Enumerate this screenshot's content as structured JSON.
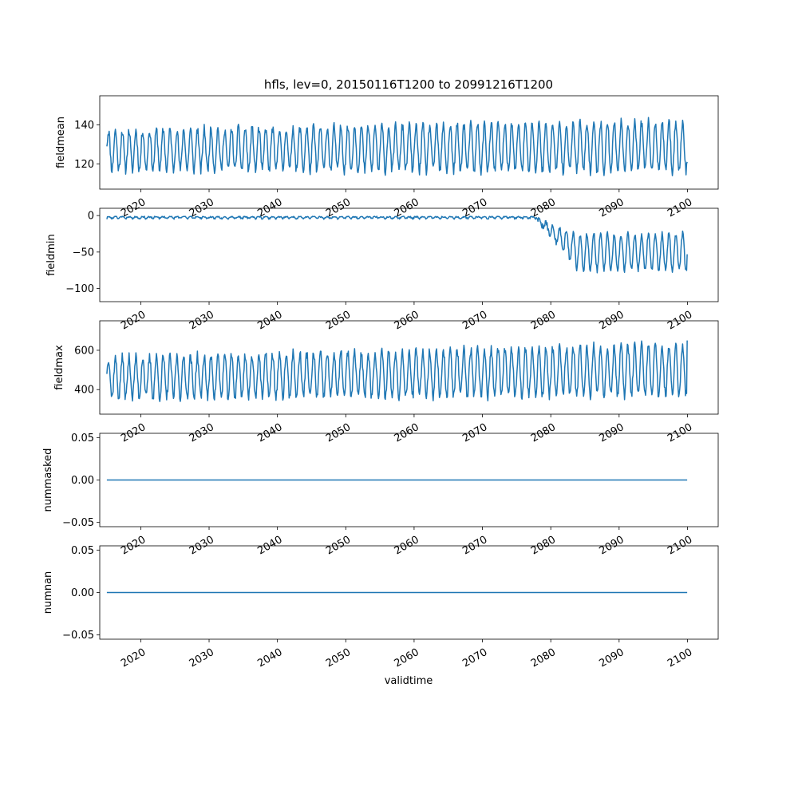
{
  "title": "hfls, lev=0, 20150116T1200 to 20991216T1200",
  "line_color": "#1f77b4",
  "chart_data": [
    {
      "type": "line",
      "ylabel": "fieldmean",
      "xlim": [
        2014.0,
        2104.5
      ],
      "ylim": [
        107,
        155
      ],
      "yticks": [
        120,
        140
      ],
      "ytick_labels": [
        "120",
        "140"
      ],
      "x_start": 2015.04,
      "x_end": 2099.96,
      "generator": {
        "base": [
          127,
          129
        ],
        "amplitude": [
          10,
          13
        ],
        "trend": 0,
        "dip_from": null,
        "dip_depth": 0,
        "noise": 2.5,
        "seed": 11
      },
      "first_value": 129,
      "last_value": 121
    },
    {
      "type": "line",
      "ylabel": "fieldmin",
      "xlim": [
        2014.0,
        2104.5
      ],
      "ylim": [
        -118,
        10
      ],
      "yticks": [
        -100,
        -50,
        0
      ],
      "ytick_labels": [
        "−100",
        "−50",
        "0"
      ],
      "x_start": 2015.04,
      "x_end": 2099.96,
      "generator": {
        "base": [
          -2,
          -2
        ],
        "amplitude": [
          3,
          3
        ],
        "trend": 0,
        "dip_from": 2078,
        "dip_depth": 55,
        "noise": 2.0,
        "seed": 23
      },
      "first_value": -5,
      "last_value": -53
    },
    {
      "type": "line",
      "ylabel": "fieldmax",
      "xlim": [
        2014.0,
        2104.5
      ],
      "ylim": [
        275,
        750
      ],
      "yticks": [
        400,
        600
      ],
      "ytick_labels": [
        "400",
        "600"
      ],
      "x_start": 2015.04,
      "x_end": 2099.96,
      "generator": {
        "base": [
          460,
          500
        ],
        "amplitude": [
          100,
          130
        ],
        "trend": 0,
        "dip_from": null,
        "dip_depth": 0,
        "noise": 25,
        "seed": 37
      },
      "first_value": 480,
      "last_value": 650
    },
    {
      "type": "line",
      "ylabel": "nummasked",
      "xlim": [
        2014.0,
        2104.5
      ],
      "ylim": [
        -0.055,
        0.055
      ],
      "yticks": [
        -0.05,
        0.0,
        0.05
      ],
      "ytick_labels": [
        "−0.05",
        "0.00",
        "0.05"
      ],
      "x_start": 2015.04,
      "x_end": 2099.96,
      "constant": 0.0
    },
    {
      "type": "line",
      "ylabel": "numnan",
      "xlabel": "validtime",
      "xlim": [
        2014.0,
        2104.5
      ],
      "ylim": [
        -0.055,
        0.055
      ],
      "yticks": [
        -0.05,
        0.0,
        0.05
      ],
      "ytick_labels": [
        "−0.05",
        "0.00",
        "0.05"
      ],
      "x_start": 2015.04,
      "x_end": 2099.96,
      "constant": 0.0
    }
  ],
  "xticks": [
    2020,
    2030,
    2040,
    2050,
    2060,
    2070,
    2080,
    2090,
    2100
  ],
  "xtick_labels": [
    "2020",
    "2030",
    "2040",
    "2050",
    "2060",
    "2070",
    "2080",
    "2090",
    "2100"
  ]
}
